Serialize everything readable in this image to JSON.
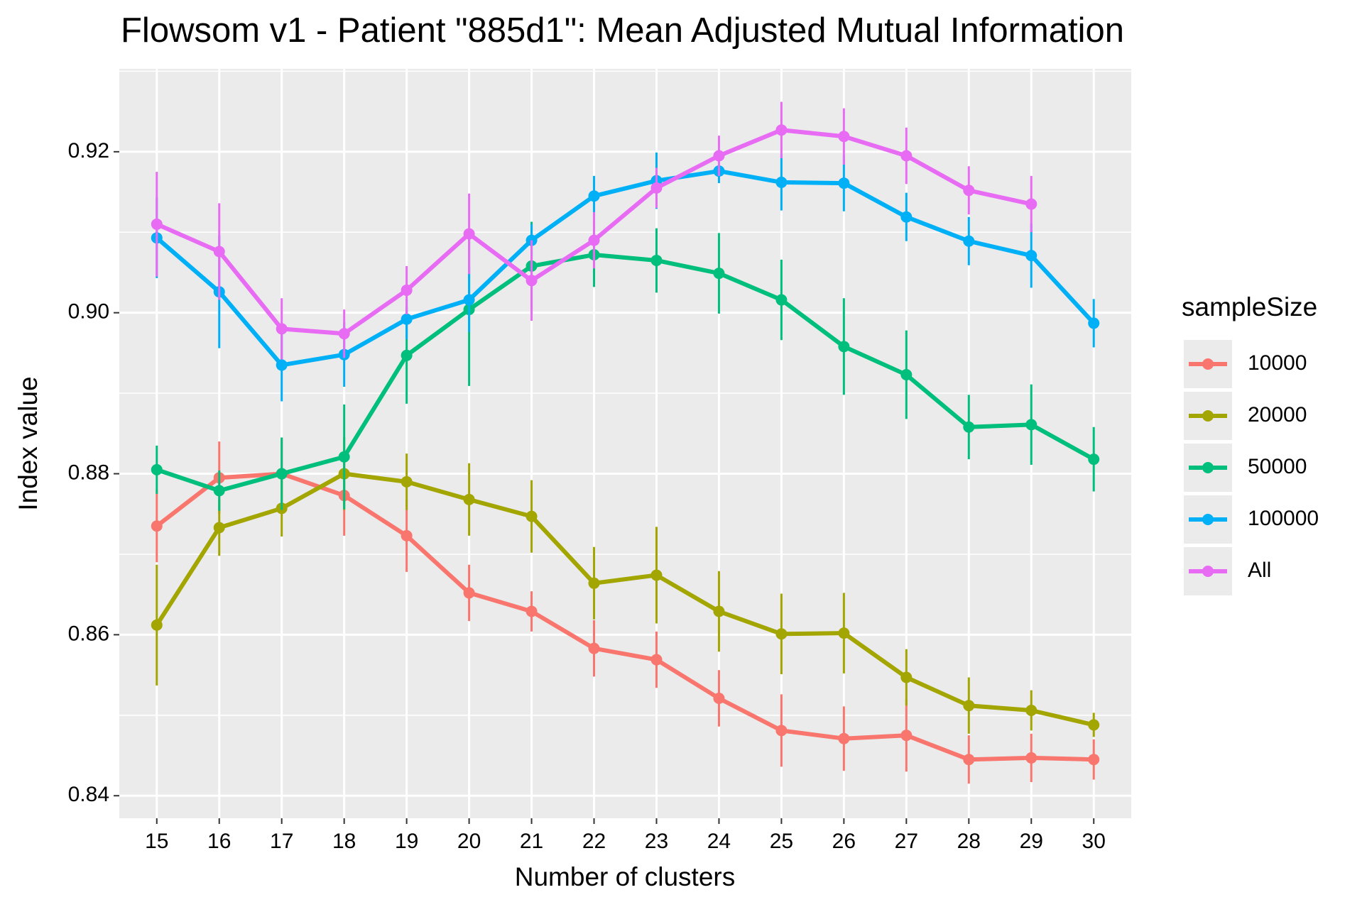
{
  "chart_data": {
    "type": "line",
    "title": "Flowsom v1 - Patient \"885d1\": Mean Adjusted Mutual Information",
    "x_label": "Number of clusters",
    "y_label": "Index value",
    "legend_title": "sampleSize",
    "legend": "right",
    "grid": true,
    "error_bars": true,
    "x": [
      15,
      16,
      17,
      18,
      19,
      20,
      21,
      22,
      23,
      24,
      25,
      26,
      27,
      28,
      29,
      30
    ],
    "xlim": [
      14.4,
      30.6
    ],
    "xticks": [
      15,
      16,
      17,
      18,
      19,
      20,
      21,
      22,
      23,
      24,
      25,
      26,
      27,
      28,
      29,
      30
    ],
    "ylim": [
      0.8372,
      0.9303
    ],
    "yticks": [
      {
        "value": 0.84,
        "label": "0.84"
      },
      {
        "value": 0.86,
        "label": "0.86"
      },
      {
        "value": 0.88,
        "label": "0.88"
      },
      {
        "value": 0.9,
        "label": "0.90"
      },
      {
        "value": 0.92,
        "label": "0.92"
      }
    ],
    "series": [
      {
        "name": "10000",
        "color": "#F8766D",
        "values": [
          0.8735,
          0.8795,
          0.88,
          0.8773,
          0.8723,
          0.8652,
          0.8629,
          0.8583,
          0.8569,
          0.8521,
          0.8481,
          0.8471,
          0.8475,
          0.8445,
          0.8447,
          0.8445
        ],
        "errors": [
          0.0045,
          0.0045,
          0.0045,
          0.005,
          0.0045,
          0.0035,
          0.0025,
          0.0035,
          0.0035,
          0.0035,
          0.0045,
          0.004,
          0.0045,
          0.003,
          0.003,
          0.0025
        ]
      },
      {
        "name": "20000",
        "color": "#A3A500",
        "values": [
          0.8612,
          0.8733,
          0.8757,
          0.88,
          0.879,
          0.8768,
          0.8747,
          0.8664,
          0.8674,
          0.8629,
          0.8601,
          0.8602,
          0.8547,
          0.8512,
          0.8506,
          0.8488
        ],
        "errors": [
          0.0075,
          0.0035,
          0.0035,
          0.0045,
          0.0035,
          0.0045,
          0.0045,
          0.0045,
          0.006,
          0.005,
          0.005,
          0.005,
          0.0035,
          0.0035,
          0.0025,
          0.0015
        ]
      },
      {
        "name": "50000",
        "color": "#00BF7D",
        "values": [
          0.8805,
          0.8779,
          0.88,
          0.8821,
          0.8947,
          0.9004,
          0.9058,
          0.9072,
          0.9065,
          0.9049,
          0.9016,
          0.8958,
          0.8923,
          0.8858,
          0.8861,
          0.8818
        ],
        "errors": [
          0.003,
          0.0025,
          0.0045,
          0.0065,
          0.006,
          0.0095,
          0.0055,
          0.004,
          0.004,
          0.005,
          0.005,
          0.006,
          0.0055,
          0.004,
          0.005,
          0.004
        ]
      },
      {
        "name": "100000",
        "color": "#00B0F6",
        "values": [
          0.9093,
          0.9026,
          0.8935,
          0.8948,
          0.8992,
          0.9016,
          0.909,
          0.9145,
          0.9164,
          0.9176,
          0.9162,
          0.9161,
          0.9119,
          0.9089,
          0.9071,
          0.8987
        ],
        "errors": [
          0.005,
          0.007,
          0.0045,
          0.004,
          0.0025,
          0.004,
          0.002,
          0.0025,
          0.0035,
          0.0015,
          0.0035,
          0.0035,
          0.003,
          0.003,
          0.004,
          0.003
        ]
      },
      {
        "name": "All",
        "color": "#E76BF3",
        "values": [
          0.911,
          0.9076,
          0.898,
          0.8974,
          0.9028,
          0.9098,
          0.904,
          0.909,
          0.9155,
          0.9195,
          0.9227,
          0.9219,
          0.9195,
          0.9152,
          0.9135,
          null
        ],
        "errors": [
          0.0065,
          0.006,
          0.0038,
          0.003,
          0.003,
          0.005,
          0.005,
          0.0035,
          0.0025,
          0.0025,
          0.0035,
          0.0035,
          0.0035,
          0.003,
          0.0035,
          null
        ]
      }
    ]
  }
}
